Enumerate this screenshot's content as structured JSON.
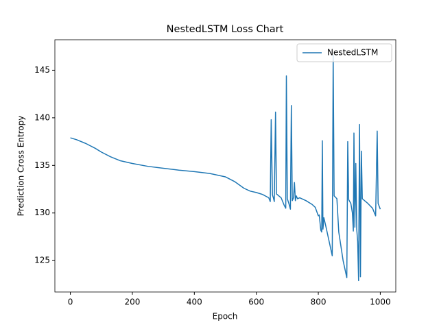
{
  "chart_data": {
    "type": "line",
    "title": "NestedLSTM Loss Chart",
    "x_label": "Epoch",
    "y_label": "Prediction Cross Entropy",
    "x": [
      0,
      20,
      50,
      80,
      100,
      130,
      160,
      200,
      250,
      300,
      350,
      400,
      450,
      500,
      530,
      560,
      580,
      600,
      620,
      640,
      645,
      648,
      652,
      655,
      658,
      662,
      665,
      680,
      690,
      695,
      697,
      700,
      705,
      710,
      713,
      716,
      720,
      723,
      726,
      729,
      733,
      740,
      760,
      780,
      790,
      800,
      803,
      808,
      811,
      813,
      815,
      818,
      825,
      835,
      845,
      848,
      851,
      860,
      866,
      880,
      892,
      895,
      898,
      905,
      910,
      913,
      915,
      918,
      921,
      924,
      927,
      930,
      933,
      936,
      939,
      942,
      960,
      975,
      985,
      990,
      993,
      1000
    ],
    "series": [
      {
        "name": "NestedLSTM",
        "color": "#1f77b4",
        "values": [
          137.9,
          137.7,
          137.3,
          136.8,
          136.4,
          135.9,
          135.5,
          135.2,
          134.9,
          134.7,
          134.5,
          134.35,
          134.15,
          133.8,
          133.3,
          132.6,
          132.3,
          132.15,
          131.95,
          131.6,
          131.2,
          139.8,
          131.9,
          131.6,
          131.2,
          140.6,
          132.0,
          131.6,
          130.8,
          130.5,
          144.4,
          131.5,
          131.0,
          130.4,
          141.3,
          131.3,
          131.6,
          133.2,
          131.3,
          131.8,
          131.5,
          131.6,
          131.3,
          130.9,
          130.6,
          129.7,
          129.8,
          128.2,
          128.0,
          137.6,
          128.3,
          129.5,
          128.5,
          127.0,
          125.5,
          146.6,
          131.8,
          131.5,
          128.0,
          125.0,
          123.2,
          137.5,
          131.4,
          131.0,
          130.0,
          128.1,
          138.4,
          128.5,
          135.2,
          128.3,
          127.0,
          122.9,
          139.3,
          123.3,
          136.5,
          131.5,
          131.0,
          130.5,
          129.7,
          138.6,
          131.0,
          130.4
        ]
      }
    ],
    "xlim": [
      -50,
      1050
    ],
    "ylim": [
      121.7,
      148.2
    ],
    "xticks": [
      0,
      200,
      400,
      600,
      800,
      1000
    ],
    "yticks": [
      125,
      130,
      135,
      140,
      145
    ],
    "grid": false,
    "legend": "upper right"
  }
}
